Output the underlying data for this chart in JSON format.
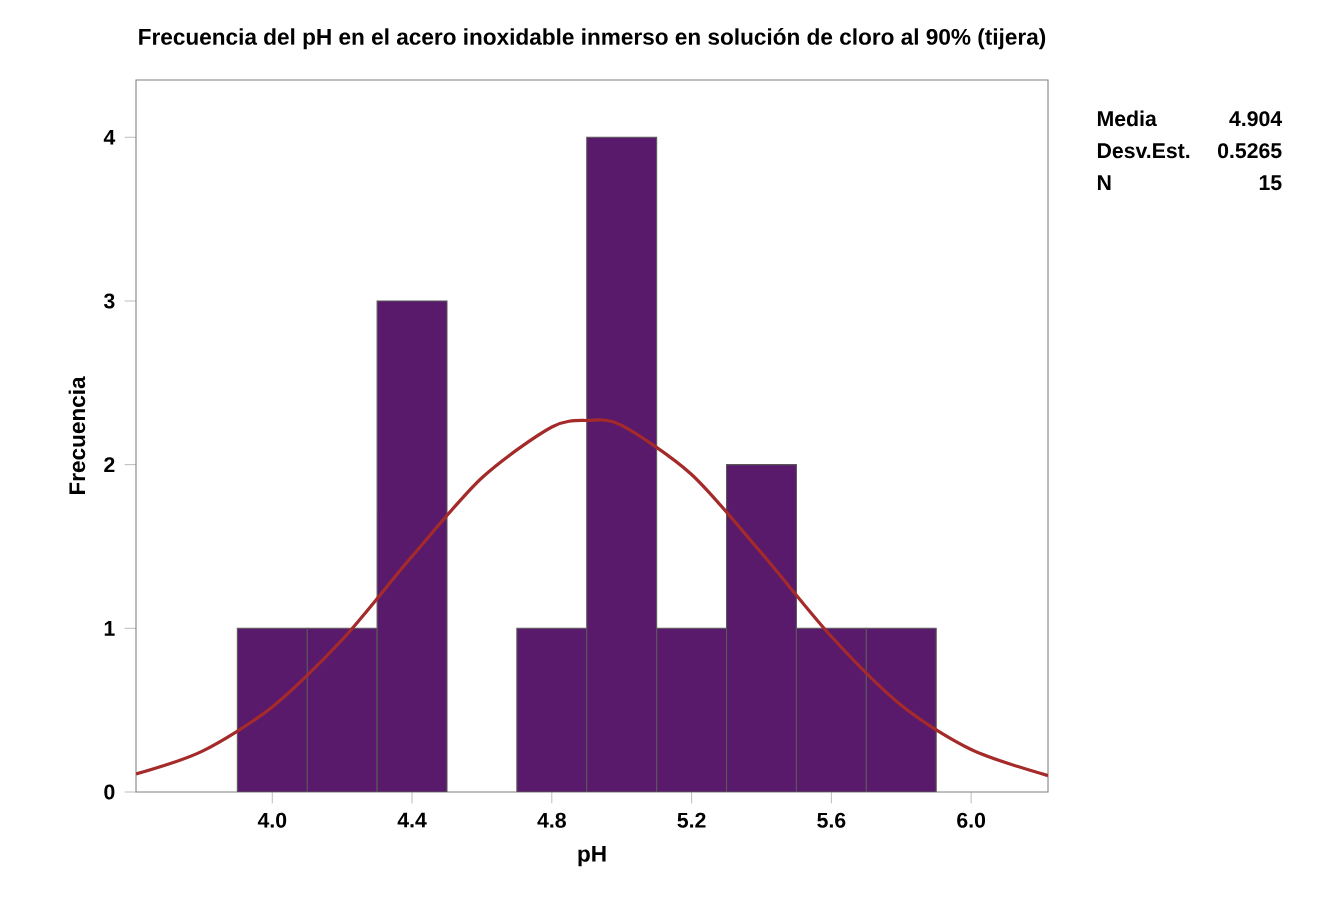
{
  "chart_data": {
    "type": "histogram",
    "title": "Frecuencia del pH en el acero inoxidable inmerso en solución de cloro al 90% (tijera)",
    "xlabel": "pH",
    "ylabel": "Frecuencia",
    "xlim": [
      3.61,
      6.22
    ],
    "ylim": [
      0,
      4.35
    ],
    "xticks": [
      {
        "value": 4.0,
        "label": "4.0"
      },
      {
        "value": 4.4,
        "label": "4.4"
      },
      {
        "value": 4.8,
        "label": "4.8"
      },
      {
        "value": 5.2,
        "label": "5.2"
      },
      {
        "value": 5.6,
        "label": "5.6"
      },
      {
        "value": 6.0,
        "label": "6.0"
      }
    ],
    "yticks": [
      0,
      1,
      2,
      3,
      4
    ],
    "series": [
      {
        "color": "#5a1a6b",
        "bins": [
          3.9,
          4.1,
          4.3,
          4.5,
          4.7,
          4.9,
          5.1,
          5.3,
          5.5,
          5.7,
          5.9
        ],
        "values": [
          1,
          1,
          3,
          0,
          1,
          4,
          1,
          2,
          1,
          1
        ]
      },
      {
        "type": "line",
        "color": "#a52a2a",
        "x": [
          3.61,
          3.8,
          4.0,
          4.2,
          4.4,
          4.6,
          4.8,
          4.904,
          5.0,
          5.2,
          5.4,
          5.6,
          5.8,
          6.0,
          6.22
        ],
        "values": [
          0.11,
          0.25,
          0.52,
          0.93,
          1.44,
          1.92,
          2.23,
          2.27,
          2.24,
          1.94,
          1.46,
          0.95,
          0.53,
          0.26,
          0.1
        ]
      }
    ],
    "annotations": [
      "Media",
      "4.904",
      "Desv.Est.",
      "0.5265",
      "N",
      "15"
    ]
  }
}
